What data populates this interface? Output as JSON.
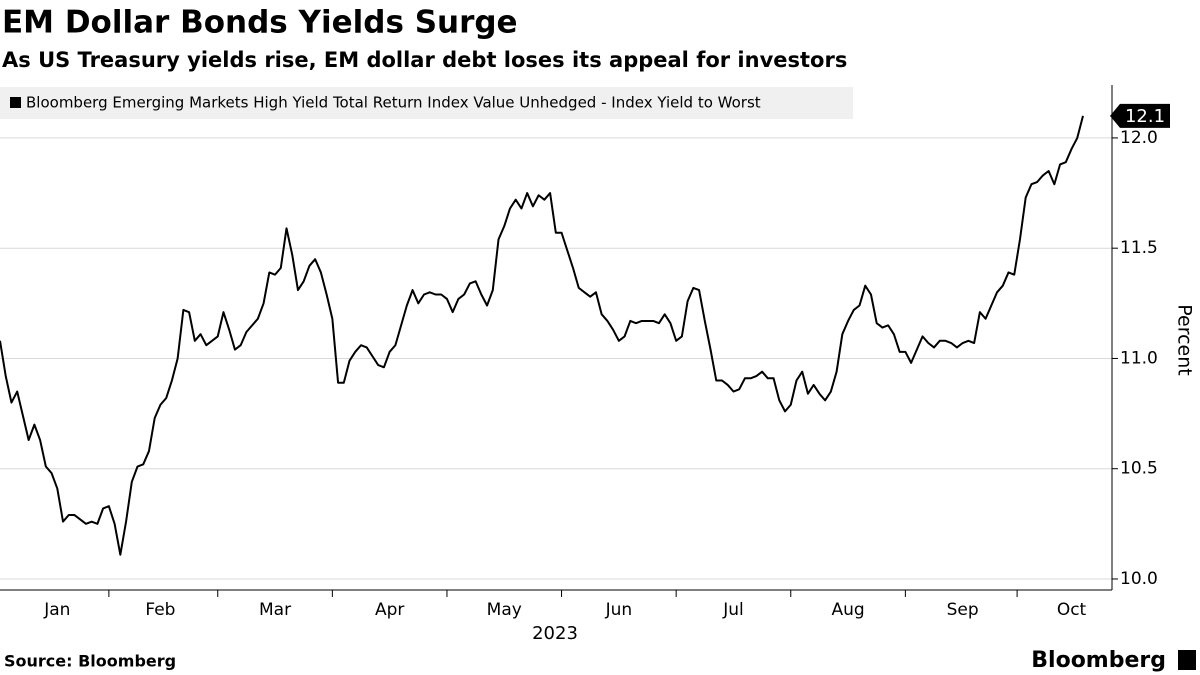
{
  "chart_data": {
    "type": "line",
    "title": "EM Dollar Bonds Yields Surge",
    "subtitle": "As US Treasury yields rise, EM dollar debt loses its appeal for investors",
    "source": "Source: Bloomberg",
    "brand": "Bloomberg",
    "x_label": "2023",
    "y_label": "Percent",
    "categories": [
      null,
      null,
      null,
      null,
      null,
      null,
      null,
      null,
      null,
      null,
      "Jan",
      null,
      null,
      null,
      null,
      null,
      null,
      null,
      null,
      null,
      null,
      null,
      null,
      null,
      null,
      null,
      null,
      null,
      "Feb",
      null,
      null,
      null,
      null,
      null,
      null,
      null,
      null,
      null,
      null,
      null,
      null,
      null,
      null,
      null,
      null,
      null,
      null,
      null,
      "Mar",
      null,
      null,
      null,
      null,
      null,
      null,
      null,
      null,
      null,
      null,
      null,
      null,
      null,
      null,
      null,
      null,
      null,
      null,
      null,
      "Apr",
      null,
      null,
      null,
      null,
      null,
      null,
      null,
      null,
      null,
      null,
      null,
      null,
      null,
      null,
      null,
      null,
      null,
      null,
      null,
      "May",
      null,
      null,
      null,
      null,
      null,
      null,
      null,
      null,
      null,
      null,
      null,
      null,
      null,
      null,
      null,
      null,
      null,
      null,
      null,
      "Jun",
      null,
      null,
      null,
      null,
      null,
      null,
      null,
      null,
      null,
      null,
      null,
      null,
      null,
      null,
      null,
      null,
      null,
      null,
      null,
      "Jul",
      null,
      null,
      null,
      null,
      null,
      null,
      null,
      null,
      null,
      null,
      null,
      null,
      null,
      null,
      null,
      null,
      null,
      null,
      null,
      "Aug",
      null,
      null,
      null,
      null,
      null,
      null,
      null,
      null,
      null,
      null,
      null,
      null,
      null,
      null,
      null,
      null,
      null,
      null,
      null,
      "Sep",
      null,
      null,
      null,
      null,
      null,
      null,
      null,
      null,
      null,
      null,
      null,
      null,
      null,
      null,
      null,
      null,
      null,
      null,
      "Oct",
      null,
      null
    ],
    "series": [
      {
        "name": "Bloomberg Emerging Markets High Yield Total Return Index Value Unhedged - Index Yield to Worst",
        "color": "#000000",
        "values": [
          11.08,
          10.92,
          10.8,
          10.85,
          10.74,
          10.63,
          10.7,
          10.63,
          10.51,
          10.48,
          10.41,
          10.26,
          10.29,
          10.29,
          10.27,
          10.25,
          10.26,
          10.25,
          10.32,
          10.33,
          10.25,
          10.11,
          10.26,
          10.44,
          10.51,
          10.52,
          10.58,
          10.73,
          10.79,
          10.82,
          10.9,
          11.0,
          11.22,
          11.21,
          11.08,
          11.11,
          11.06,
          11.08,
          11.1,
          11.21,
          11.13,
          11.04,
          11.06,
          11.12,
          11.15,
          11.18,
          11.25,
          11.39,
          11.38,
          11.41,
          11.59,
          11.47,
          11.31,
          11.35,
          11.42,
          11.45,
          11.39,
          11.29,
          11.18,
          10.89,
          10.89,
          10.99,
          11.03,
          11.06,
          11.05,
          11.01,
          10.97,
          10.96,
          11.03,
          11.06,
          11.15,
          11.24,
          11.31,
          11.25,
          11.29,
          11.3,
          11.29,
          11.29,
          11.27,
          11.21,
          11.27,
          11.29,
          11.34,
          11.35,
          11.29,
          11.24,
          11.31,
          11.54,
          11.6,
          11.68,
          11.72,
          11.68,
          11.75,
          11.69,
          11.74,
          11.72,
          11.75,
          11.57,
          11.57,
          11.49,
          11.41,
          11.32,
          11.3,
          11.28,
          11.3,
          11.2,
          11.17,
          11.13,
          11.08,
          11.1,
          11.17,
          11.16,
          11.17,
          11.17,
          11.17,
          11.16,
          11.2,
          11.16,
          11.08,
          11.1,
          11.26,
          11.32,
          11.31,
          11.17,
          11.04,
          10.9,
          10.9,
          10.88,
          10.85,
          10.86,
          10.91,
          10.91,
          10.92,
          10.94,
          10.91,
          10.91,
          10.81,
          10.76,
          10.79,
          10.9,
          10.94,
          10.84,
          10.88,
          10.84,
          10.81,
          10.85,
          10.94,
          11.11,
          11.17,
          11.22,
          11.24,
          11.33,
          11.29,
          11.16,
          11.14,
          11.15,
          11.11,
          11.03,
          11.03,
          10.98,
          11.04,
          11.1,
          11.07,
          11.05,
          11.08,
          11.08,
          11.07,
          11.05,
          11.07,
          11.08,
          11.07,
          11.21,
          11.18,
          11.24,
          11.3,
          11.33,
          11.39,
          11.38,
          11.54,
          11.73,
          11.79,
          11.8,
          11.83,
          11.85,
          11.79,
          11.88,
          11.89,
          11.95,
          12.0,
          12.1
        ]
      }
    ],
    "ylim": [
      9.95,
      12.24
    ],
    "yticks": [
      {
        "value": 10,
        "label": "10.0"
      },
      10.5,
      {
        "value": 11,
        "label": "11.0"
      },
      11.5,
      {
        "value": 12,
        "label": "12.0"
      }
    ],
    "grid": true
  }
}
